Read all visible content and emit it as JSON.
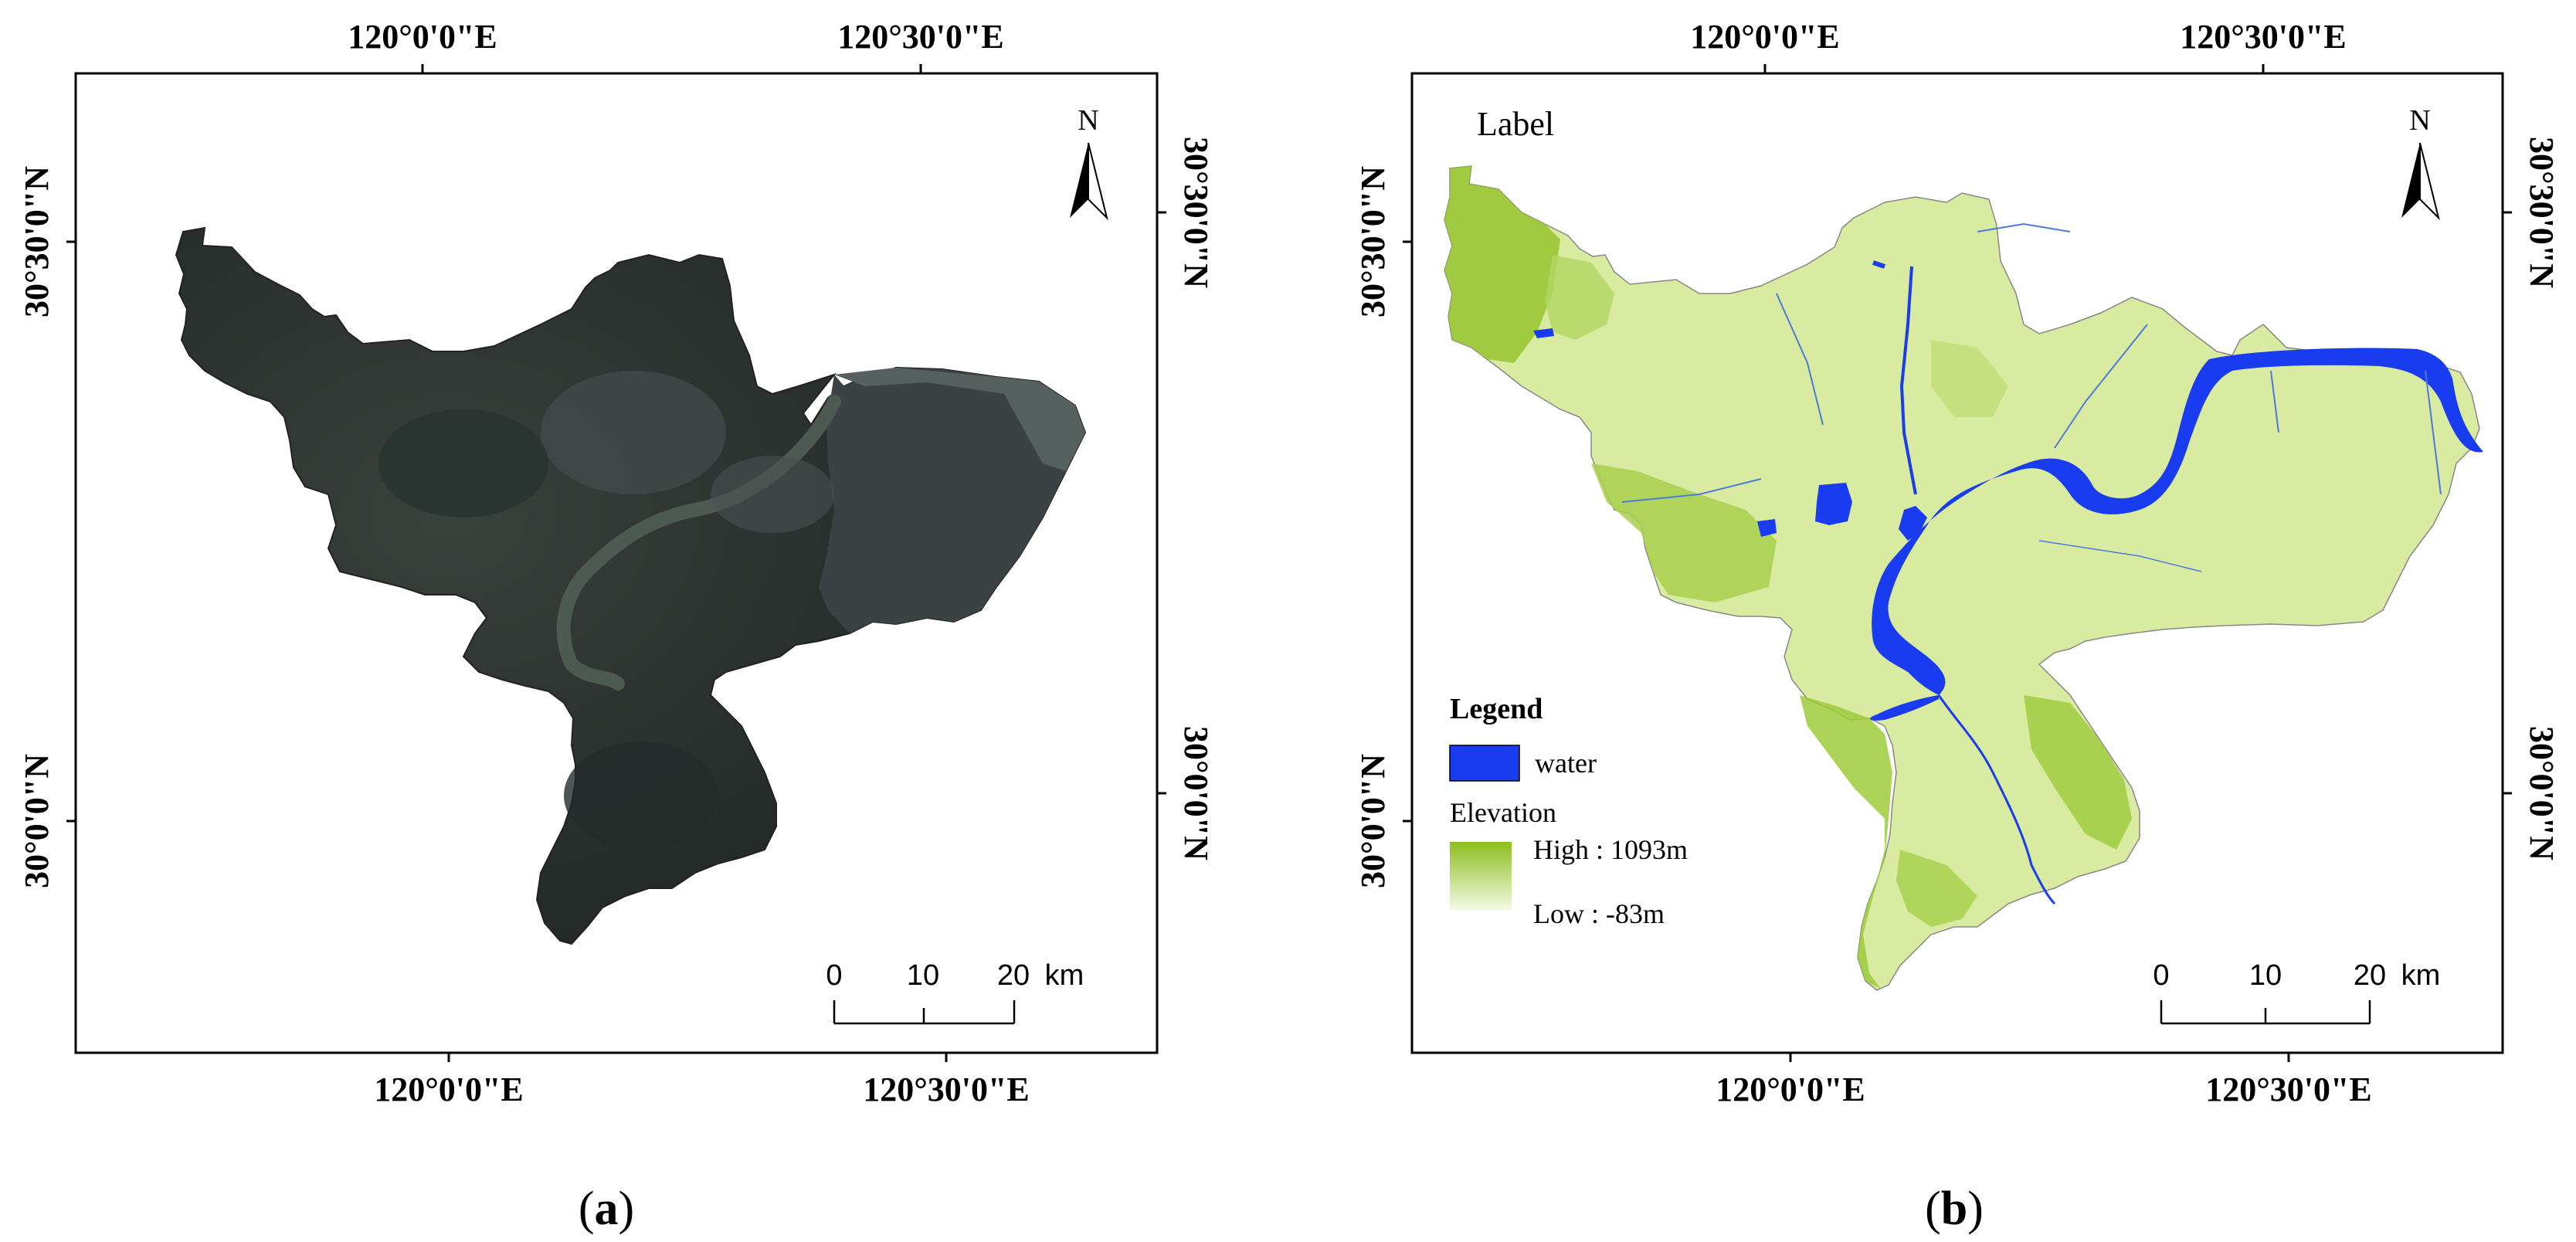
{
  "panels": [
    {
      "id": "a",
      "caption_open": "(",
      "caption_letter": "a",
      "caption_close": ")",
      "top_ticks": [
        "120°0'0\"E",
        "120°30'0\"E"
      ],
      "bottom_ticks": [
        "120°0'0\"E",
        "120°30'0\"E"
      ],
      "left_ticks": [
        "30°30'0\"N",
        "30°0'0\"N"
      ],
      "right_ticks": [
        "30°30'0\"N",
        "30°0'0\"N"
      ],
      "north": "N",
      "scale": [
        "0",
        "10",
        "20",
        "km"
      ],
      "map_fill": "#2f3533"
    },
    {
      "id": "b",
      "caption_open": "(",
      "caption_letter": "b",
      "caption_close": ")",
      "top_ticks": [
        "120°0'0\"E",
        "120°30'0\"E"
      ],
      "bottom_ticks": [
        "120°0'0\"E",
        "120°30'0\"E"
      ],
      "left_ticks": [
        "30°30'0\"N",
        "30°0'0\"N"
      ],
      "right_ticks": [
        "30°30'0\"N",
        "30°0'0\"N"
      ],
      "north": "N",
      "scale": [
        "0",
        "10",
        "20",
        "km"
      ],
      "label": "Label",
      "legend": {
        "title": "Legend",
        "water": "water",
        "elevation_title": "Elevation",
        "high": "High : 1093m",
        "low": "Low : -83m"
      },
      "map_fill": "#d8eba0",
      "water_color": "#1a3cf0",
      "high_color": "#8cbf1e",
      "low_color": "#f2f8e0"
    }
  ]
}
